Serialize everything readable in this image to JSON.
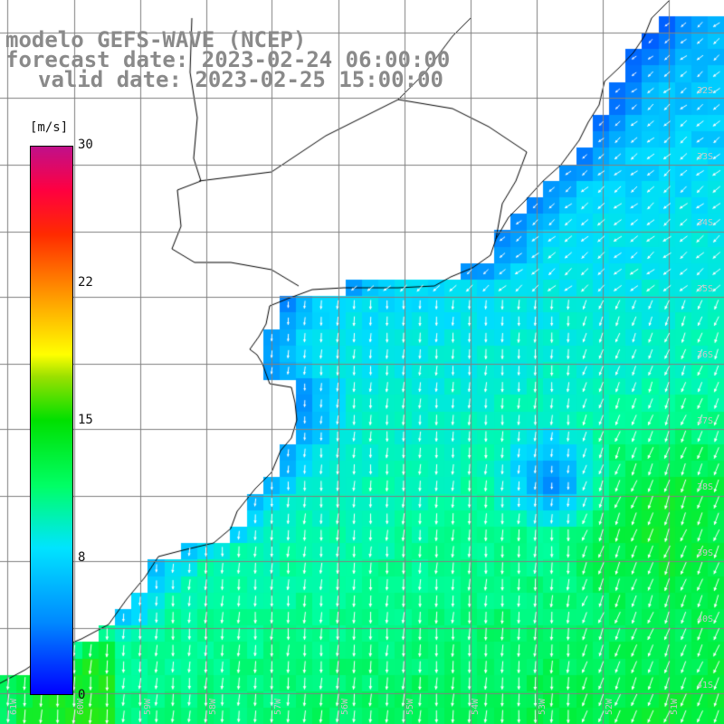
{
  "title": {
    "model": "modelo GEFS-WAVE (NCEP)",
    "forecast": "forecast date: 2023-02-24 06:00:00",
    "valid": "valid date: 2023-02-25 15:00:00"
  },
  "colorbar": {
    "unit": "[m/s]",
    "ticks": [
      "30",
      "22",
      "15",
      "8",
      "0"
    ],
    "colors": [
      "#0000ff",
      "#0088ff",
      "#00e4ff",
      "#00ff66",
      "#00e000",
      "#ffff00",
      "#ff2a00",
      "#c0108a"
    ]
  },
  "lat_labels": [
    "32S",
    "33S",
    "34S",
    "35S",
    "36S",
    "37S",
    "38S",
    "39S",
    "40S",
    "41S"
  ],
  "lon_labels": [
    "61W",
    "60W",
    "59W",
    "58W",
    "57W",
    "56W",
    "55W",
    "54W",
    "53W",
    "52W",
    "51W"
  ],
  "colors": {
    "land": "#ffffff",
    "coast": "#000000",
    "grid": "#808080",
    "vector": "#ffffff",
    "title": "#8a8a8a"
  }
}
